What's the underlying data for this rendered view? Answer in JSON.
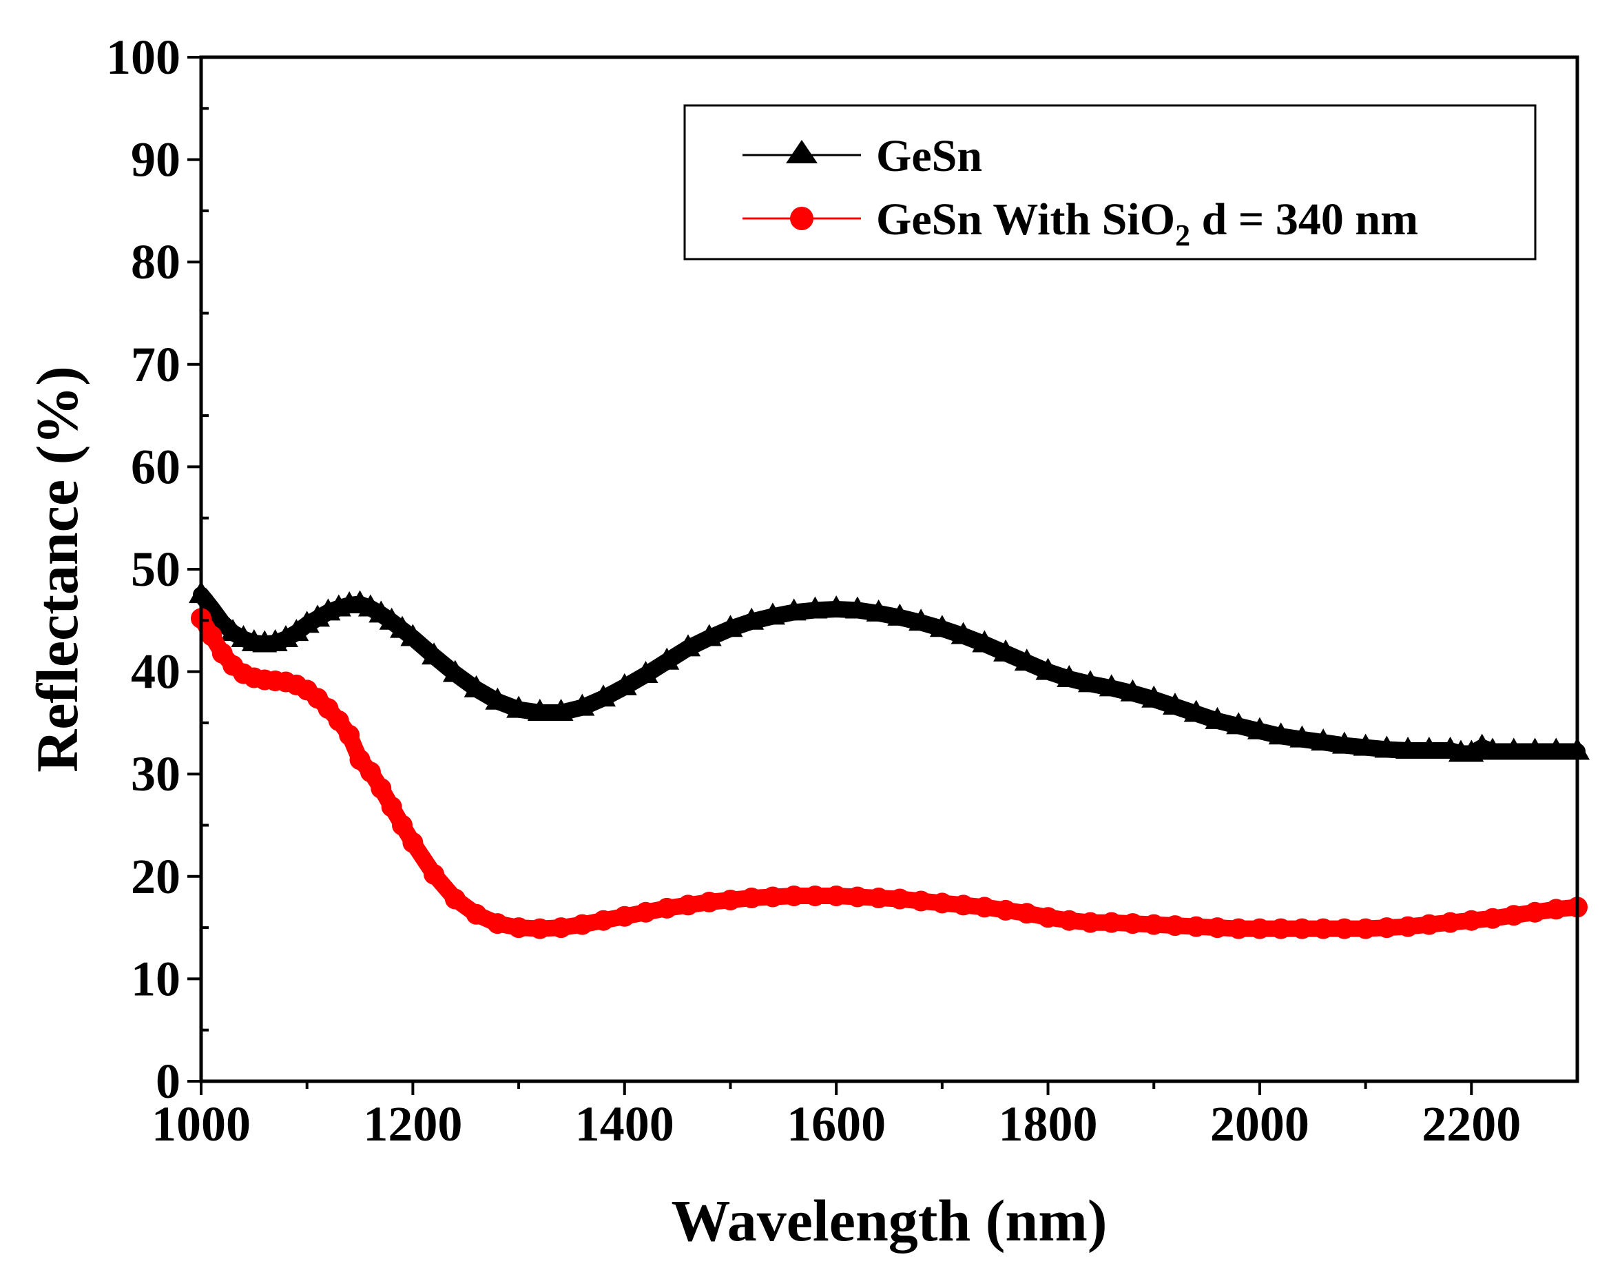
{
  "chart_data": {
    "type": "line",
    "title": "",
    "xlabel": "Wavelength (nm)",
    "ylabel": "Reflectance (%)",
    "xlim": [
      1000,
      2300
    ],
    "ylim": [
      0,
      100
    ],
    "xticks": [
      "1000",
      "1200",
      "1400",
      "1600",
      "1800",
      "2000",
      "2200"
    ],
    "yticks": [
      "0",
      "10",
      "20",
      "30",
      "40",
      "50",
      "60",
      "70",
      "80",
      "90",
      "100"
    ],
    "grid": false,
    "legend_position": "top-right",
    "legend": {
      "gesn_label": "GeSn",
      "sio2_label_prefix": "GeSn With SiO",
      "sio2_label_sub": "2",
      "sio2_label_suffix": " d = 340 nm"
    },
    "series": [
      {
        "name": "GeSn",
        "color": "#000000",
        "marker": "triangle",
        "x": [
          1000,
          1010,
          1020,
          1030,
          1040,
          1050,
          1060,
          1070,
          1080,
          1090,
          1100,
          1110,
          1120,
          1130,
          1140,
          1150,
          1160,
          1170,
          1180,
          1190,
          1200,
          1220,
          1240,
          1260,
          1280,
          1300,
          1320,
          1340,
          1360,
          1380,
          1400,
          1420,
          1440,
          1460,
          1480,
          1500,
          1520,
          1540,
          1560,
          1580,
          1600,
          1620,
          1640,
          1660,
          1680,
          1700,
          1720,
          1740,
          1760,
          1780,
          1800,
          1820,
          1840,
          1860,
          1880,
          1900,
          1920,
          1940,
          1960,
          1980,
          2000,
          2020,
          2040,
          2060,
          2080,
          2100,
          2120,
          2140,
          2160,
          2180,
          2190,
          2200,
          2210,
          2220,
          2240,
          2260,
          2280,
          2300
        ],
        "values": [
          47.5,
          46.2,
          44.8,
          43.8,
          43.2,
          42.8,
          42.7,
          42.8,
          43.2,
          43.8,
          44.6,
          45.2,
          45.8,
          46.2,
          46.5,
          46.6,
          46.2,
          45.6,
          44.9,
          44.1,
          43.3,
          41.5,
          39.8,
          38.3,
          37.1,
          36.3,
          36.0,
          36.0,
          36.5,
          37.4,
          38.5,
          39.7,
          41.0,
          42.3,
          43.3,
          44.2,
          44.9,
          45.4,
          45.8,
          46.0,
          46.1,
          46.0,
          45.7,
          45.3,
          44.8,
          44.2,
          43.5,
          42.7,
          41.8,
          40.9,
          40.0,
          39.3,
          38.8,
          38.4,
          37.9,
          37.3,
          36.6,
          35.9,
          35.2,
          34.7,
          34.2,
          33.7,
          33.4,
          33.1,
          32.8,
          32.6,
          32.4,
          32.3,
          32.3,
          32.3,
          32.0,
          32.0,
          32.6,
          32.2,
          32.2,
          32.2,
          32.2,
          32.2
        ]
      },
      {
        "name": "GeSn With SiO2 d = 340 nm",
        "color": "#ff0000",
        "marker": "circle",
        "x": [
          1000,
          1010,
          1020,
          1030,
          1040,
          1050,
          1060,
          1070,
          1080,
          1090,
          1100,
          1110,
          1120,
          1130,
          1140,
          1150,
          1160,
          1170,
          1180,
          1190,
          1200,
          1220,
          1240,
          1260,
          1280,
          1300,
          1320,
          1340,
          1360,
          1380,
          1400,
          1420,
          1440,
          1460,
          1480,
          1500,
          1520,
          1540,
          1560,
          1580,
          1600,
          1620,
          1640,
          1660,
          1680,
          1700,
          1720,
          1740,
          1760,
          1780,
          1800,
          1820,
          1840,
          1860,
          1880,
          1900,
          1920,
          1940,
          1960,
          1980,
          2000,
          2020,
          2040,
          2060,
          2080,
          2100,
          2120,
          2140,
          2160,
          2180,
          2200,
          2220,
          2240,
          2260,
          2280,
          2300
        ],
        "values": [
          45.2,
          43.5,
          41.8,
          40.6,
          39.8,
          39.4,
          39.2,
          39.1,
          39.0,
          38.7,
          38.2,
          37.4,
          36.4,
          35.2,
          33.8,
          31.4,
          30.2,
          28.6,
          26.8,
          25.0,
          23.3,
          20.2,
          17.8,
          16.3,
          15.4,
          15.0,
          14.9,
          15.0,
          15.3,
          15.7,
          16.1,
          16.5,
          16.9,
          17.2,
          17.5,
          17.7,
          17.9,
          18.0,
          18.1,
          18.1,
          18.1,
          18.0,
          17.9,
          17.8,
          17.6,
          17.4,
          17.2,
          17.0,
          16.7,
          16.4,
          16.0,
          15.7,
          15.5,
          15.5,
          15.4,
          15.3,
          15.2,
          15.1,
          15.0,
          14.9,
          14.9,
          14.9,
          14.9,
          14.9,
          14.9,
          14.9,
          15.0,
          15.1,
          15.3,
          15.5,
          15.7,
          15.9,
          16.2,
          16.5,
          16.8,
          17.0
        ]
      }
    ]
  }
}
